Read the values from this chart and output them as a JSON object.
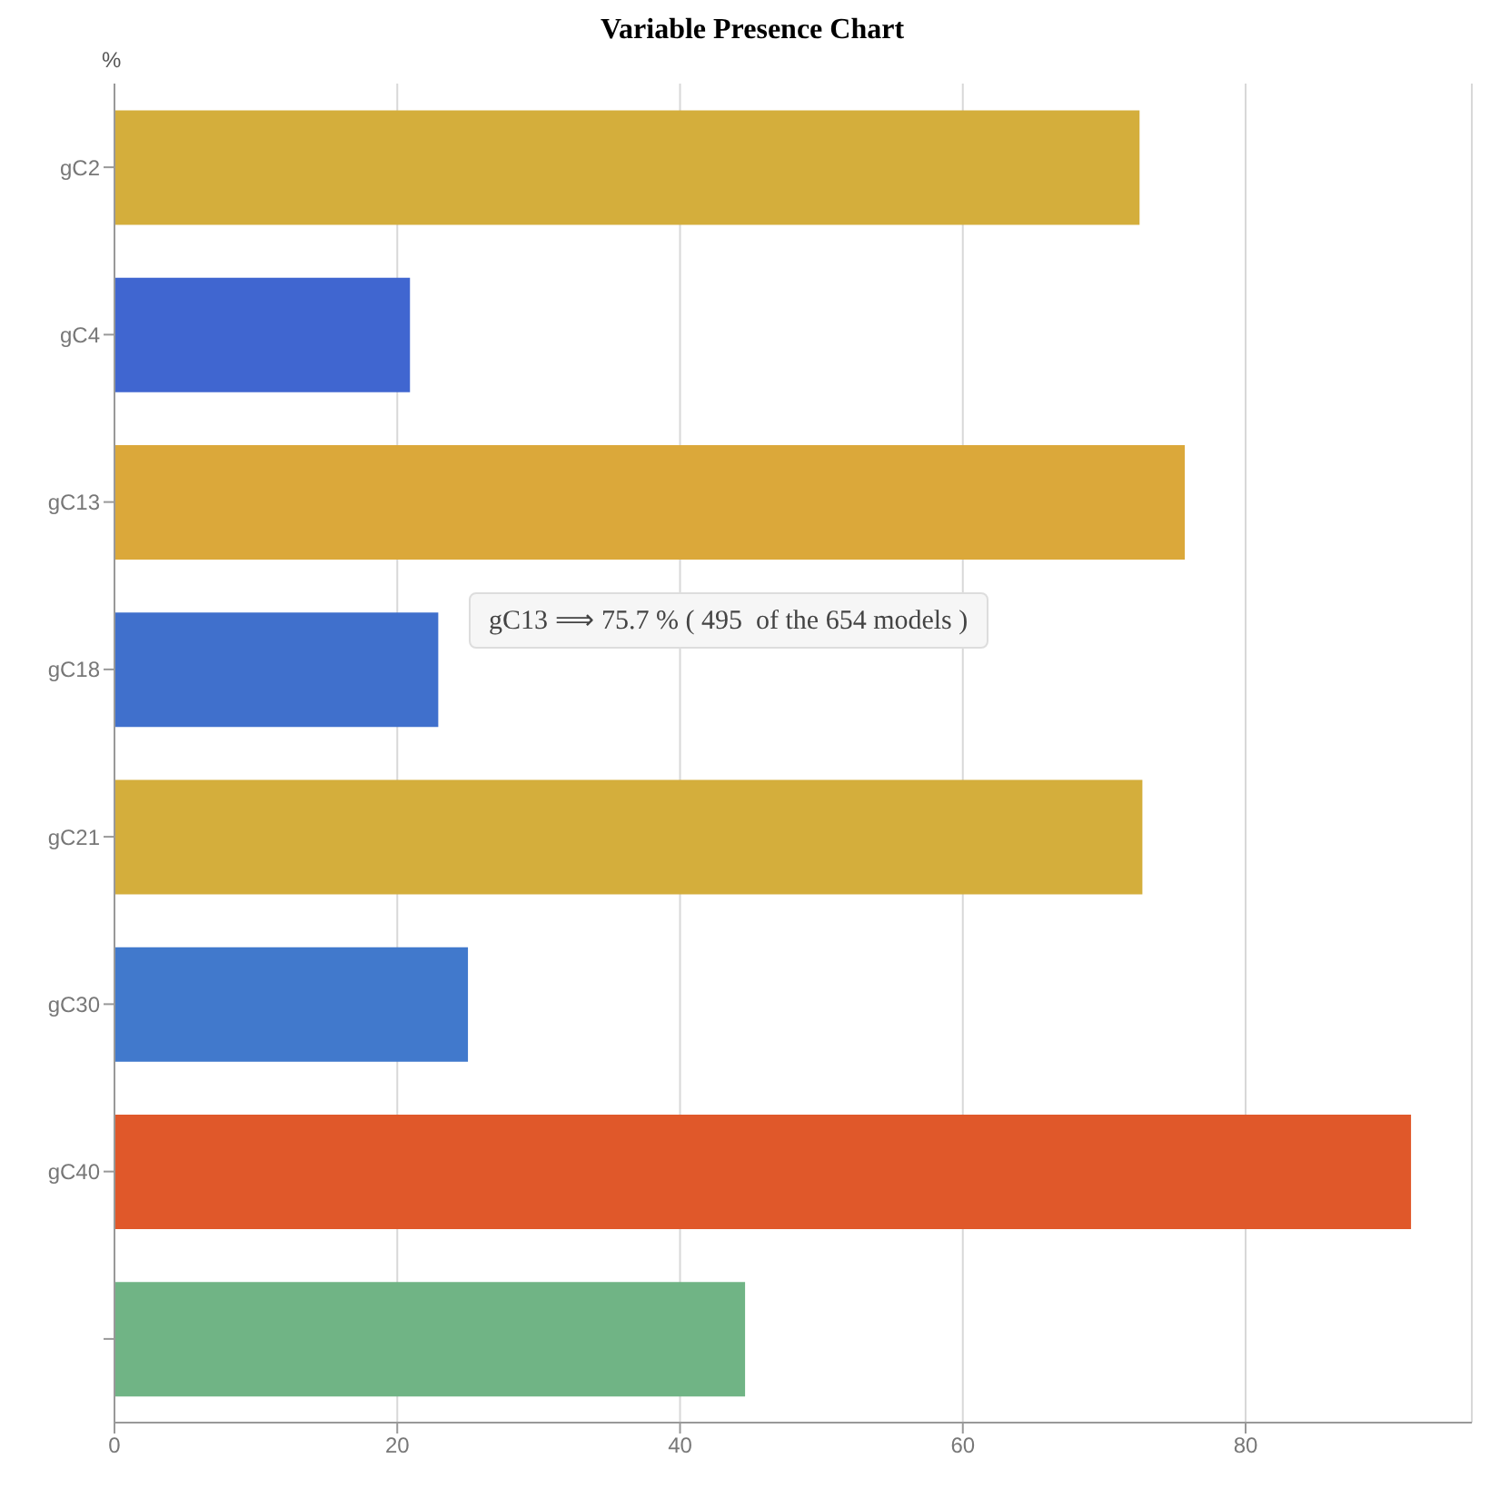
{
  "chart_data": {
    "type": "bar",
    "orientation": "horizontal",
    "title": "Variable Presence Chart",
    "xlabel": "%",
    "categories": [
      "gC2",
      "gC4",
      "gC13",
      "gC18",
      "gC21",
      "gC30",
      "gC40",
      null
    ],
    "values": [
      72.5,
      20.9,
      75.7,
      22.9,
      72.7,
      25.0,
      91.7,
      44.6
    ],
    "colors": [
      "#d4ae3c",
      "#4066d0",
      "#dba83a",
      "#4070cc",
      "#d4ae3c",
      "#4179cc",
      "#e0582a",
      "#70b485"
    ],
    "xlim": [
      0,
      96
    ],
    "xticks": [
      0,
      20,
      40,
      60,
      80
    ],
    "grid": "x",
    "annotations": [
      "gC13 ⟹ 75.7 % ( 495  of the 654 models )"
    ]
  }
}
